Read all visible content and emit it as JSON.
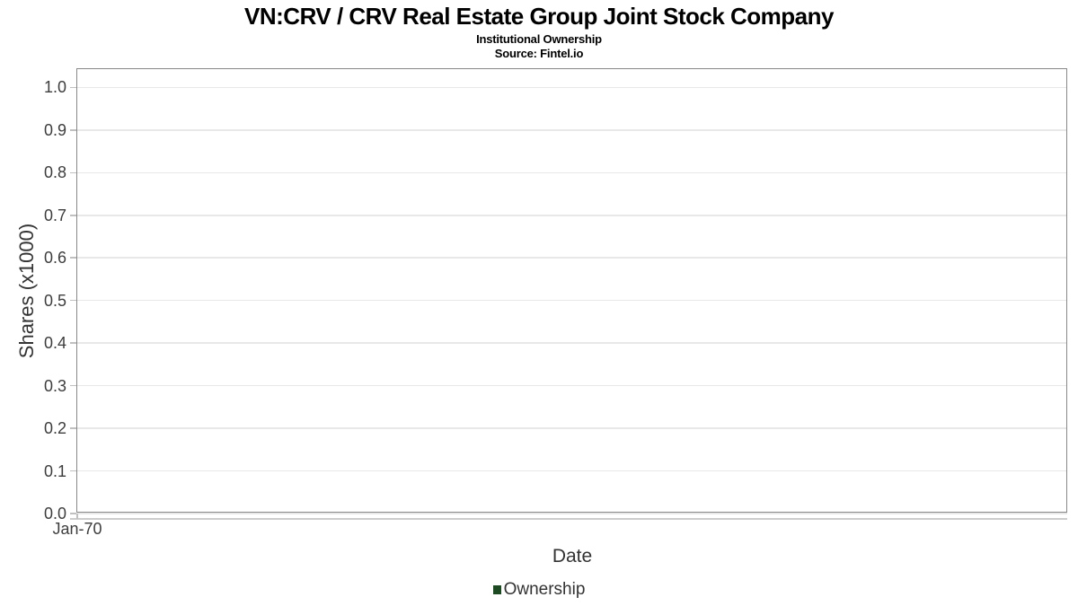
{
  "header": {
    "title": "VN:CRV / CRV Real Estate Group Joint Stock Company",
    "subtitle": "Institutional Ownership",
    "source": "Source: Fintel.io"
  },
  "chart_data": {
    "type": "line",
    "title": "VN:CRV / CRV Real Estate Group Joint Stock Company",
    "subtitle": "Institutional Ownership",
    "source": "Source: Fintel.io",
    "xlabel": "Date",
    "ylabel": "Shares (x1000)",
    "x_tick_labels": [
      "Jan-70"
    ],
    "y_tick_labels": [
      "0.0",
      "0.1",
      "0.2",
      "0.3",
      "0.4",
      "0.5",
      "0.6",
      "0.7",
      "0.8",
      "0.9",
      "1.0"
    ],
    "ylim": [
      0,
      1.045
    ],
    "grid": true,
    "legend_position": "bottom-center",
    "series": [
      {
        "name": "Ownership",
        "color": "#1e4a23",
        "values": []
      }
    ]
  },
  "colors": {
    "title": "#000000",
    "plot_border": "#888888",
    "gridline": "#e8e8e8",
    "axis_line": "#cccccc",
    "tick": "#c0c0c0",
    "tick_label": "#3d3d3d",
    "axis_label": "#333333",
    "legend_text": "#333333",
    "legend_swatch": "#1e4a23",
    "background": "#ffffff"
  }
}
